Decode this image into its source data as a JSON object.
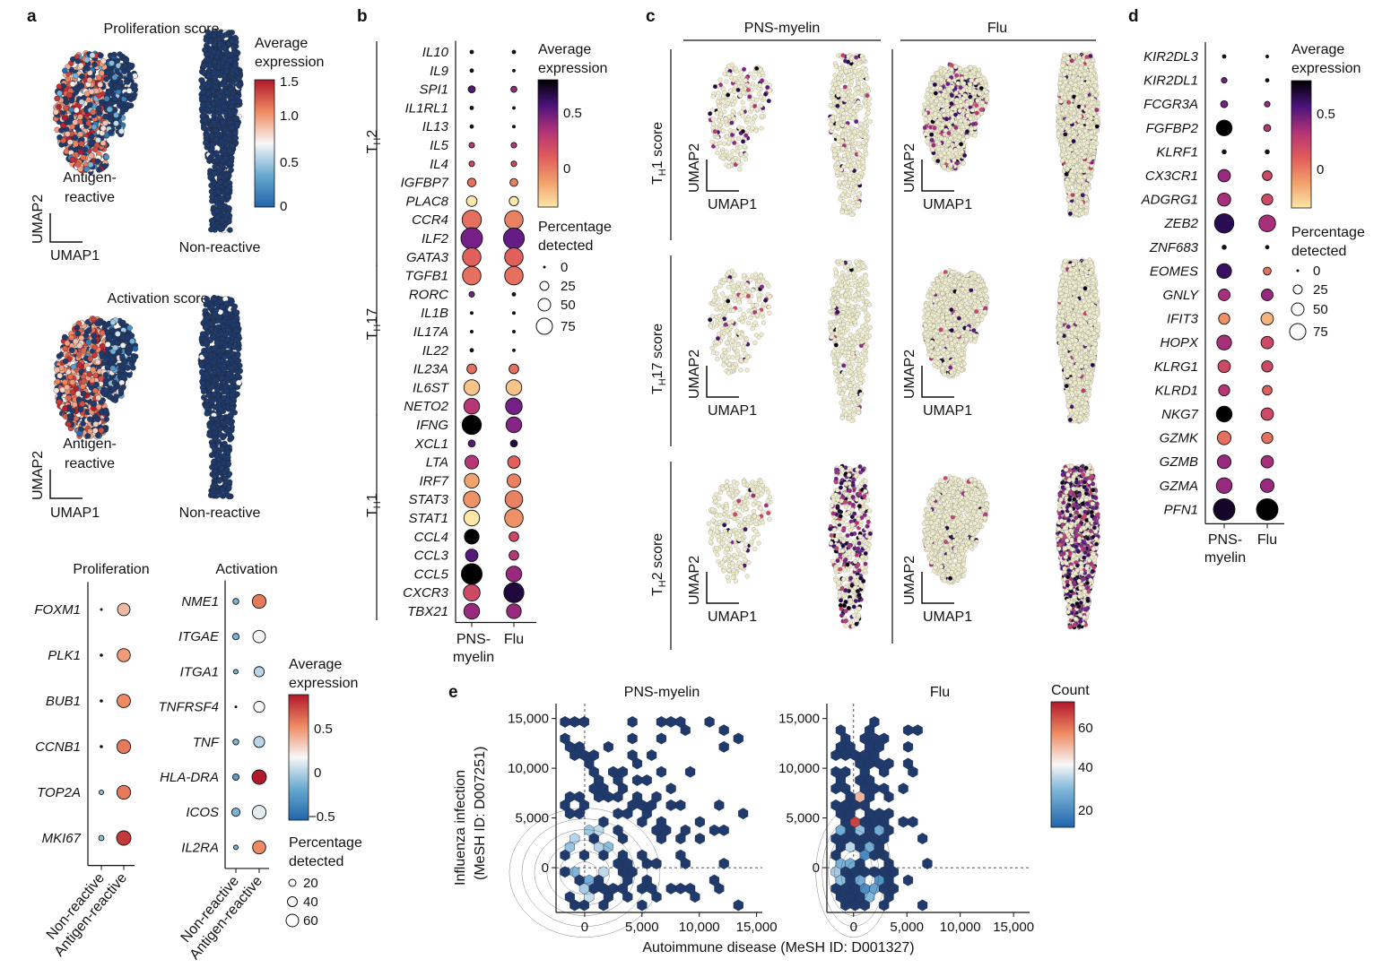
{
  "panels": {
    "a": "a",
    "b": "b",
    "c": "c",
    "d": "d",
    "e": "e"
  },
  "common": {
    "umap1": "UMAP1",
    "umap2": "UMAP2",
    "avg_expr": [
      "Average",
      "expression"
    ],
    "pct": [
      "Percentage",
      "detected"
    ]
  },
  "panel_a": {
    "umaps": [
      {
        "title": "Proliferation score",
        "left_label": [
          "Antigen-",
          "reactive"
        ],
        "right_label": "Non-reactive"
      },
      {
        "title": "Activation score",
        "left_label": [
          "Antigen-",
          "reactive"
        ],
        "right_label": "Non-reactive"
      }
    ],
    "colorbar_ticks": [
      "1.5",
      "1.0",
      "0.5",
      "0"
    ],
    "colors": {
      "high": "#b2182b",
      "mid": "#f7f7f7",
      "low": "#2166ac",
      "cell": "#1f3a6b"
    }
  },
  "chart_data": [
    {
      "type": "dotplot",
      "id": "a-proliferation",
      "title": "Proliferation",
      "x": [
        "Non-reactive",
        "Antigen-reactive"
      ],
      "genes": [
        "FOXM1",
        "PLK1",
        "BUB1",
        "CCNB1",
        "TOP2A",
        "MKI67"
      ],
      "avg_expression": [
        [
          -0.1,
          0.4
        ],
        [
          -0.1,
          0.5
        ],
        [
          -0.1,
          0.55
        ],
        [
          -0.1,
          0.6
        ],
        [
          -0.05,
          0.6
        ],
        [
          -0.05,
          0.8
        ]
      ],
      "pct_detected": [
        [
          2,
          45
        ],
        [
          3,
          50
        ],
        [
          3,
          52
        ],
        [
          3,
          55
        ],
        [
          6,
          55
        ],
        [
          8,
          60
        ]
      ],
      "legend_expr_ticks": [
        "0.5",
        "0",
        "−0.5"
      ],
      "legend_pct_ticks": [
        "20",
        "40",
        "60"
      ]
    },
    {
      "type": "dotplot",
      "id": "a-activation",
      "title": "Activation",
      "x": [
        "Non-reactive",
        "Antigen-reactive"
      ],
      "genes": [
        "NME1",
        "ITGAE",
        "ITGA1",
        "TNFRSF4",
        "TNF",
        "HLA-DRA",
        "ICOS",
        "IL2RA"
      ],
      "avg_expression": [
        [
          -0.1,
          0.6
        ],
        [
          -0.1,
          0.2
        ],
        [
          -0.1,
          0.05
        ],
        [
          -0.1,
          0.2
        ],
        [
          -0.1,
          0.05
        ],
        [
          -0.2,
          0.9
        ],
        [
          -0.1,
          0.15
        ],
        [
          -0.1,
          0.55
        ]
      ],
      "pct_detected": [
        [
          10,
          55
        ],
        [
          12,
          45
        ],
        [
          6,
          30
        ],
        [
          2,
          35
        ],
        [
          10,
          35
        ],
        [
          12,
          60
        ],
        [
          20,
          55
        ],
        [
          6,
          50
        ]
      ]
    },
    {
      "type": "dotplot",
      "id": "b",
      "x": [
        "PNS-myelin",
        "Flu"
      ],
      "groups": [
        {
          "label": "TH2",
          "genes": [
            "IL10",
            "IL9",
            "SPI1",
            "IL1RL1",
            "IL13",
            "IL5",
            "IL4",
            "IGFBP7",
            "PLAC8",
            "CCR4",
            "ILF2",
            "GATA3"
          ]
        },
        {
          "label": "TH17",
          "genes": [
            "TGFB1",
            "RORC",
            "IL1B",
            "IL17A",
            "IL22",
            "IL23A",
            "IL6ST",
            "NETO2"
          ]
        },
        {
          "label": "TH1",
          "genes": [
            "IFNG",
            "XCL1",
            "LTA",
            "IRF7",
            "STAT3",
            "STAT1",
            "CCL4",
            "CCL3",
            "CCL5",
            "CXCR3",
            "TBX21"
          ]
        }
      ],
      "avg_expression": [
        [
          0.6,
          0.4
        ],
        [
          0.4,
          0.3
        ],
        [
          0.6,
          0.4
        ],
        [
          0.3,
          0.2
        ],
        [
          0.4,
          0.3
        ],
        [
          0.3,
          0.3
        ],
        [
          0.2,
          0.2
        ],
        [
          0.05,
          0.0
        ],
        [
          -0.3,
          -0.3
        ],
        [
          0.05,
          0.0
        ],
        [
          0.5,
          0.55
        ],
        [
          0.1,
          0.1
        ],
        [
          0.05,
          0.05
        ],
        [
          0.5,
          0.5
        ],
        [
          0.2,
          0.2
        ],
        [
          0.3,
          0.3
        ],
        [
          0.3,
          0.3
        ],
        [
          0.05,
          0.05
        ],
        [
          -0.2,
          -0.2
        ],
        [
          0.3,
          0.5
        ],
        [
          0.95,
          0.45
        ],
        [
          0.6,
          0.8
        ],
        [
          0.3,
          0.1
        ],
        [
          -0.1,
          0.0
        ],
        [
          -0.05,
          0.0
        ],
        [
          -0.3,
          -0.05
        ],
        [
          0.95,
          0.2
        ],
        [
          0.6,
          0.3
        ],
        [
          0.95,
          0.4
        ],
        [
          0.2,
          0.8
        ],
        [
          0.4,
          0.4
        ]
      ],
      "pct_detected": [
        [
          3,
          3
        ],
        [
          3,
          2
        ],
        [
          8,
          6
        ],
        [
          3,
          2
        ],
        [
          3,
          2
        ],
        [
          5,
          5
        ],
        [
          5,
          5
        ],
        [
          12,
          10
        ],
        [
          18,
          14
        ],
        [
          60,
          55
        ],
        [
          75,
          70
        ],
        [
          55,
          55
        ],
        [
          55,
          55
        ],
        [
          5,
          3
        ],
        [
          2,
          2
        ],
        [
          2,
          2
        ],
        [
          3,
          2
        ],
        [
          15,
          15
        ],
        [
          40,
          40
        ],
        [
          40,
          45
        ],
        [
          60,
          40
        ],
        [
          8,
          8
        ],
        [
          30,
          25
        ],
        [
          35,
          30
        ],
        [
          45,
          50
        ],
        [
          40,
          55
        ],
        [
          35,
          15
        ],
        [
          25,
          15
        ],
        [
          70,
          40
        ],
        [
          45,
          65
        ],
        [
          40,
          35
        ]
      ],
      "legend_expr_ticks": [
        "0.5",
        "0"
      ],
      "legend_pct_ticks": [
        "0",
        "25",
        "50",
        "75"
      ]
    },
    {
      "type": "dotplot",
      "id": "d",
      "x": [
        "PNS-myelin",
        "Flu"
      ],
      "genes": [
        "KIR2DL3",
        "KIR2DL1",
        "FCGR3A",
        "FGFBP2",
        "KLRF1",
        "CX3CR1",
        "ADGRG1",
        "ZEB2",
        "ZNF683",
        "EOMES",
        "GNLY",
        "IFIT3",
        "HOPX",
        "KLRG1",
        "KLRD1",
        "NKG7",
        "GZMK",
        "GZMB",
        "GZMA",
        "PFN1"
      ],
      "avg_expression": [
        [
          0.5,
          0.3
        ],
        [
          0.5,
          0.3
        ],
        [
          0.5,
          0.4
        ],
        [
          0.95,
          0.3
        ],
        [
          0.4,
          0.4
        ],
        [
          0.4,
          0.2
        ],
        [
          0.35,
          0.2
        ],
        [
          0.75,
          0.35
        ],
        [
          0.4,
          0.3
        ],
        [
          0.7,
          0.05
        ],
        [
          0.35,
          0.4
        ],
        [
          -0.05,
          -0.15
        ],
        [
          0.35,
          0.2
        ],
        [
          0.2,
          0.2
        ],
        [
          0.3,
          0.1
        ],
        [
          0.95,
          0.2
        ],
        [
          0.05,
          0.05
        ],
        [
          0.4,
          0.35
        ],
        [
          0.4,
          0.4
        ],
        [
          0.85,
          0.95
        ]
      ],
      "pct_detected": [
        [
          3,
          2
        ],
        [
          5,
          3
        ],
        [
          8,
          5
        ],
        [
          40,
          8
        ],
        [
          4,
          4
        ],
        [
          25,
          15
        ],
        [
          28,
          20
        ],
        [
          60,
          45
        ],
        [
          4,
          3
        ],
        [
          35,
          10
        ],
        [
          22,
          22
        ],
        [
          20,
          25
        ],
        [
          35,
          25
        ],
        [
          25,
          20
        ],
        [
          20,
          15
        ],
        [
          40,
          25
        ],
        [
          30,
          20
        ],
        [
          30,
          25
        ],
        [
          40,
          30
        ],
        [
          75,
          75
        ]
      ],
      "legend_expr_ticks": [
        "0.5",
        "0"
      ],
      "legend_pct_ticks": [
        "0",
        "25",
        "50",
        "75"
      ]
    },
    {
      "type": "hexbin",
      "id": "e",
      "xlabel": "Autoimmune disease (MeSH ID: D001327)",
      "ylabel": [
        "Influenza infection",
        "(MeSH ID: D007251)"
      ],
      "legend_title": "Count",
      "legend_ticks": [
        "60",
        "40",
        "20"
      ],
      "subplots": [
        {
          "title": "PNS-myelin",
          "xlim": [
            -2500,
            15500
          ],
          "ylim": [
            -4500,
            16500
          ],
          "xticks": [
            "0",
            "5,000",
            "10,000",
            "15,000"
          ],
          "yticks": [
            "15,000",
            "10,000",
            "5,000",
            "0"
          ]
        },
        {
          "title": "Flu",
          "xlim": [
            -2500,
            16500
          ],
          "ylim": [
            -4500,
            16500
          ],
          "xticks": [
            "0",
            "5,000",
            "10,000",
            "15,000"
          ],
          "yticks": [
            "15,000",
            "10,000",
            "5,000",
            "0"
          ]
        }
      ]
    }
  ],
  "panel_c": {
    "columns": [
      "PNS-myelin",
      "Flu"
    ],
    "rows": [
      "TH1 score",
      "TH17 score",
      "TH2 score"
    ]
  },
  "scales": {
    "dot_colors": [
      "#fce6a8",
      "#f0a06a",
      "#e05a5a",
      "#b03278",
      "#6a1d8a",
      "#2c0c55",
      "#000000"
    ],
    "diverging": [
      "#2166ac",
      "#67a9cf",
      "#f7f7f7",
      "#ef8a62",
      "#b2182b"
    ]
  }
}
